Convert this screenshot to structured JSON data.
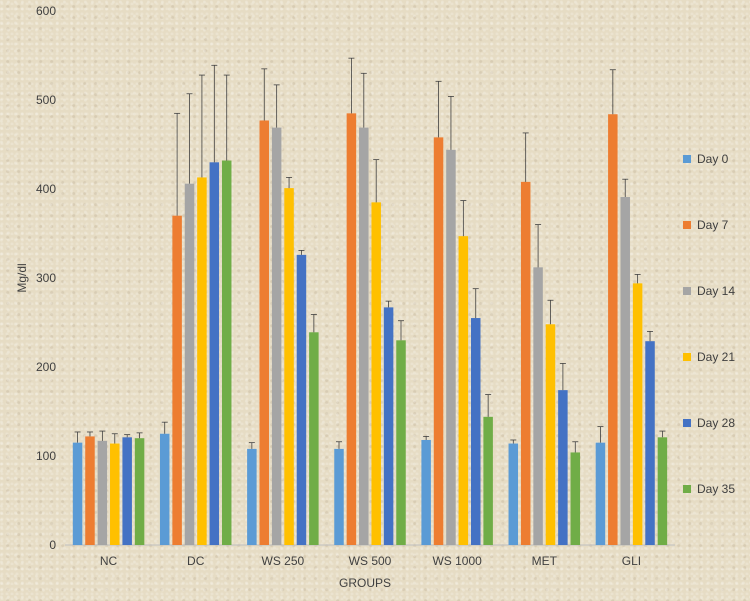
{
  "chart_data": {
    "type": "bar",
    "title": "",
    "xlabel": "GROUPS",
    "ylabel": "Mg/dl",
    "ylim": [
      0,
      600
    ],
    "yticks": [
      0,
      100,
      200,
      300,
      400,
      500,
      600
    ],
    "grid": false,
    "legend_position": "right",
    "categories": [
      "NC",
      "DC",
      "WS 250",
      "WS 500",
      "WS 1000",
      "MET",
      "GLI"
    ],
    "series": [
      {
        "name": "Day 0",
        "color": "#5b9bd5",
        "values": [
          115,
          125,
          108,
          108,
          118,
          114,
          115
        ],
        "errors": [
          12,
          13,
          7,
          8,
          4,
          4,
          18
        ]
      },
      {
        "name": "Day 7",
        "color": "#ed7d31",
        "values": [
          122,
          370,
          477,
          485,
          458,
          408,
          484
        ],
        "errors": [
          5,
          115,
          58,
          62,
          63,
          55,
          50
        ]
      },
      {
        "name": "Day 14",
        "color": "#a5a5a5",
        "values": [
          117,
          406,
          469,
          469,
          444,
          312,
          391
        ],
        "errors": [
          11,
          101,
          48,
          61,
          60,
          48,
          20
        ]
      },
      {
        "name": "Day 21",
        "color": "#ffc000",
        "values": [
          114,
          413,
          401,
          385,
          347,
          248,
          294
        ],
        "errors": [
          11,
          115,
          12,
          48,
          40,
          27,
          10
        ]
      },
      {
        "name": "Day 28",
        "color": "#4472c4",
        "values": [
          121,
          430,
          326,
          267,
          255,
          174,
          229
        ],
        "errors": [
          3,
          109,
          5,
          7,
          33,
          30,
          11
        ]
      },
      {
        "name": "Day 35",
        "color": "#70ad47",
        "values": [
          120,
          432,
          239,
          230,
          144,
          104,
          121
        ],
        "errors": [
          6,
          96,
          20,
          22,
          25,
          12,
          7
        ]
      }
    ]
  }
}
